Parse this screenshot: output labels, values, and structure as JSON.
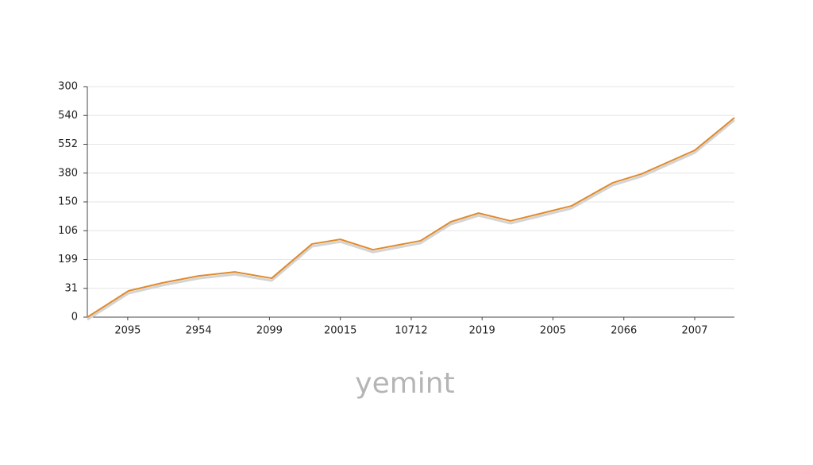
{
  "chart_data": {
    "type": "line",
    "watermark": "yemint",
    "x": [
      0,
      0.58,
      1.06,
      1.57,
      2.08,
      2.6,
      3.17,
      3.57,
      4.03,
      4.7,
      5.13,
      5.52,
      5.97,
      6.42,
      6.83,
      7.41,
      7.82,
      8.57,
      9.13
    ],
    "series": [
      {
        "color": "#e08a2a",
        "values": [
          0,
          0.91,
          1.19,
          1.43,
          1.57,
          1.35,
          2.54,
          2.7,
          2.34,
          2.65,
          3.31,
          3.61,
          3.34,
          3.61,
          3.86,
          4.66,
          4.97,
          5.79,
          6.92
        ]
      }
    ],
    "xlim": [
      0,
      9.13
    ],
    "xticks": [
      {
        "value": 0.57,
        "label": "2095"
      },
      {
        "value": 1.57,
        "label": "2954"
      },
      {
        "value": 2.57,
        "label": "2099"
      },
      {
        "value": 3.57,
        "label": "20015"
      },
      {
        "value": 4.57,
        "label": "10712"
      },
      {
        "value": 5.57,
        "label": "2019"
      },
      {
        "value": 6.57,
        "label": "2005"
      },
      {
        "value": 7.57,
        "label": "2066"
      },
      {
        "value": 8.57,
        "label": "2007"
      }
    ],
    "ylim": [
      0,
      8
    ],
    "yticks": [
      0,
      {
        "value": 1,
        "label": "31"
      },
      {
        "value": 2,
        "label": "199"
      },
      {
        "value": 3,
        "label": "106"
      },
      {
        "value": 4,
        "label": "150"
      },
      {
        "value": 5,
        "label": "380"
      },
      {
        "value": 6,
        "label": "552"
      },
      {
        "value": 7,
        "label": "540"
      },
      {
        "value": 8,
        "label": "300"
      }
    ],
    "grid": true
  }
}
